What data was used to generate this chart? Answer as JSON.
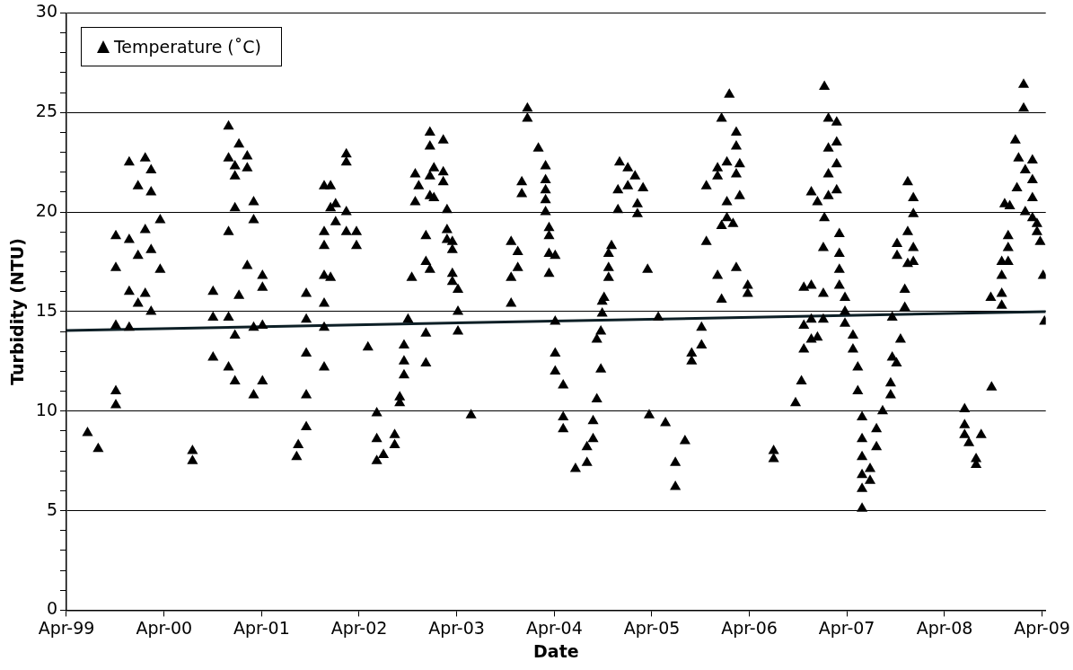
{
  "chart_data": {
    "type": "scatter",
    "xlabel": "Date",
    "ylabel": "Turbidity (NTU)",
    "xlim": [
      "1999-04-01",
      "2009-04-15"
    ],
    "xticks": [
      {
        "value": "1999-04-01",
        "label": "Apr-99"
      },
      {
        "value": "2000-04-01",
        "label": "Apr-00"
      },
      {
        "value": "2001-04-01",
        "label": "Apr-01"
      },
      {
        "value": "2002-04-01",
        "label": "Apr-02"
      },
      {
        "value": "2003-04-01",
        "label": "Apr-03"
      },
      {
        "value": "2004-04-01",
        "label": "Apr-04"
      },
      {
        "value": "2005-04-01",
        "label": "Apr-05"
      },
      {
        "value": "2006-04-01",
        "label": "Apr-06"
      },
      {
        "value": "2007-04-01",
        "label": "Apr-07"
      },
      {
        "value": "2008-04-01",
        "label": "Apr-08"
      },
      {
        "value": "2009-04-01",
        "label": "Apr-09"
      }
    ],
    "ylim": [
      0,
      30
    ],
    "yticks": [
      0,
      {
        "value": 1,
        "label": null
      },
      {
        "value": 2,
        "label": null
      },
      {
        "value": 3,
        "label": null
      },
      {
        "value": 4,
        "label": null
      },
      5,
      {
        "value": 6,
        "label": null
      },
      {
        "value": 7,
        "label": null
      },
      {
        "value": 8,
        "label": null
      },
      {
        "value": 9,
        "label": null
      },
      10,
      {
        "value": 11,
        "label": null
      },
      {
        "value": 12,
        "label": null
      },
      {
        "value": 13,
        "label": null
      },
      {
        "value": 14,
        "label": null
      },
      15,
      {
        "value": 16,
        "label": null
      },
      {
        "value": 17,
        "label": null
      },
      {
        "value": 18,
        "label": null
      },
      {
        "value": 19,
        "label": null
      },
      20,
      {
        "value": 21,
        "label": null
      },
      {
        "value": 22,
        "label": null
      },
      {
        "value": 23,
        "label": null
      },
      {
        "value": 24,
        "label": null
      },
      25,
      {
        "value": 26,
        "label": null
      },
      {
        "value": 27,
        "label": null
      },
      {
        "value": 28,
        "label": null
      },
      {
        "value": 29,
        "label": null
      },
      30
    ],
    "grid": "y",
    "legend": "top left",
    "series": [
      {
        "name": "Temperature (˚C)",
        "color": "#000000",
        "marker": "triangle",
        "x": [
          "1999-06-19",
          "1999-07-29",
          "1999-10-03",
          "1999-10-03",
          "1999-10-03",
          "1999-10-03",
          "1999-10-03",
          "1999-11-22",
          "1999-11-22",
          "1999-11-22",
          "1999-11-22",
          "1999-12-25",
          "1999-12-25",
          "1999-12-25",
          "2000-01-21",
          "2000-01-21",
          "2000-01-21",
          "2000-02-12",
          "2000-02-12",
          "2000-02-12",
          "2000-02-12",
          "2000-03-17",
          "2000-03-17",
          "2000-07-16",
          "2000-07-16",
          "2000-10-01",
          "2000-10-01",
          "2000-10-01",
          "2000-11-28",
          "2000-11-28",
          "2000-11-28",
          "2000-11-28",
          "2000-11-28",
          "2000-12-22",
          "2000-12-22",
          "2000-12-22",
          "2000-12-22",
          "2000-12-22",
          "2001-01-06",
          "2001-01-06",
          "2001-02-06",
          "2001-02-06",
          "2001-02-06",
          "2001-03-02",
          "2001-03-02",
          "2001-03-02",
          "2001-03-02",
          "2001-04-04",
          "2001-04-04",
          "2001-04-04",
          "2001-04-04",
          "2001-08-16",
          "2001-08-10",
          "2001-09-15",
          "2001-09-15",
          "2001-09-15",
          "2001-09-15",
          "2001-09-15",
          "2001-11-21",
          "2001-11-21",
          "2001-11-21",
          "2001-11-21",
          "2001-11-21",
          "2001-11-21",
          "2001-11-21",
          "2001-12-15",
          "2001-12-15",
          "2001-12-15",
          "2002-01-03",
          "2002-01-03",
          "2002-02-12",
          "2002-02-12",
          "2002-02-12",
          "2002-02-12",
          "2002-03-22",
          "2002-03-22",
          "2002-05-04",
          "2002-06-06",
          "2002-06-06",
          "2002-06-06",
          "2002-07-01",
          "2002-08-12",
          "2002-08-12",
          "2002-08-31",
          "2002-08-31",
          "2002-09-16",
          "2002-09-16",
          "2002-09-16",
          "2002-10-01",
          "2002-10-15",
          "2002-10-28",
          "2002-10-28",
          "2002-11-10",
          "2002-12-07",
          "2002-12-07",
          "2002-12-07",
          "2002-12-07",
          "2002-12-22",
          "2002-12-22",
          "2002-12-22",
          "2002-12-22",
          "2002-12-22",
          "2003-01-06",
          "2003-01-06",
          "2003-02-10",
          "2003-02-10",
          "2003-02-10",
          "2003-02-24",
          "2003-02-24",
          "2003-02-24",
          "2003-03-16",
          "2003-03-16",
          "2003-03-16",
          "2003-03-16",
          "2003-04-06",
          "2003-04-06",
          "2003-04-06",
          "2003-05-25",
          "2003-10-22",
          "2003-10-22",
          "2003-10-22",
          "2003-11-16",
          "2003-11-16",
          "2003-12-01",
          "2003-12-01",
          "2003-12-22",
          "2003-12-22",
          "2004-02-01",
          "2004-02-28",
          "2004-02-28",
          "2004-02-28",
          "2004-02-28",
          "2004-02-28",
          "2004-03-12",
          "2004-03-12",
          "2004-03-12",
          "2004-03-12",
          "2004-04-04",
          "2004-04-04",
          "2004-04-04",
          "2004-04-04",
          "2004-05-04",
          "2004-05-04",
          "2004-05-04",
          "2004-06-19",
          "2004-08-01",
          "2004-08-01",
          "2004-08-24",
          "2004-08-24",
          "2004-09-07",
          "2004-09-07",
          "2004-09-22",
          "2004-09-22",
          "2004-09-27",
          "2004-09-27",
          "2004-10-04",
          "2004-10-21",
          "2004-10-21",
          "2004-10-21",
          "2004-11-01",
          "2004-11-25",
          "2004-11-25",
          "2004-12-01",
          "2005-01-01",
          "2005-01-01",
          "2005-01-28",
          "2005-02-06",
          "2005-02-06",
          "2005-02-27",
          "2005-03-16",
          "2005-03-22",
          "2005-04-25",
          "2005-05-22",
          "2005-06-28",
          "2005-06-28",
          "2005-08-03",
          "2005-08-28",
          "2005-08-28",
          "2005-10-04",
          "2005-10-04",
          "2005-10-22",
          "2005-10-22",
          "2005-12-03",
          "2005-12-03",
          "2005-12-03",
          "2005-12-18",
          "2005-12-18",
          "2005-12-18",
          "2006-01-07",
          "2006-01-07",
          "2006-01-07",
          "2006-01-16",
          "2006-01-30",
          "2006-02-11",
          "2006-02-11",
          "2006-02-11",
          "2006-02-11",
          "2006-02-24",
          "2006-02-24",
          "2006-03-26",
          "2006-03-26",
          "2006-07-01",
          "2006-07-01",
          "2006-09-21",
          "2006-10-13",
          "2006-10-22",
          "2006-10-22",
          "2006-10-22",
          "2006-11-19",
          "2006-11-19",
          "2006-11-19",
          "2006-11-19",
          "2006-12-12",
          "2006-12-12",
          "2007-01-03",
          "2007-01-03",
          "2007-01-03",
          "2007-01-07",
          "2007-01-07",
          "2007-01-22",
          "2007-01-22",
          "2007-01-22",
          "2007-01-22",
          "2007-02-22",
          "2007-02-22",
          "2007-02-22",
          "2007-02-22",
          "2007-03-04",
          "2007-03-04",
          "2007-03-04",
          "2007-03-04",
          "2007-03-25",
          "2007-03-25",
          "2007-03-25",
          "2007-04-24",
          "2007-04-24",
          "2007-05-12",
          "2007-05-12",
          "2007-05-28",
          "2007-05-28",
          "2007-05-28",
          "2007-05-28",
          "2007-05-28",
          "2007-05-28",
          "2007-06-27",
          "2007-06-27",
          "2007-07-21",
          "2007-07-21",
          "2007-08-13",
          "2007-09-12",
          "2007-09-12",
          "2007-09-18",
          "2007-09-18",
          "2007-10-04",
          "2007-10-06",
          "2007-10-06",
          "2007-10-19",
          "2007-11-04",
          "2007-11-04",
          "2007-11-15",
          "2007-11-15",
          "2007-11-15",
          "2007-12-06",
          "2007-12-06",
          "2007-12-06",
          "2007-12-06",
          "2008-06-15",
          "2008-06-15",
          "2008-06-15",
          "2008-07-01",
          "2008-07-28",
          "2008-07-28",
          "2008-08-16",
          "2008-09-21",
          "2008-09-24",
          "2008-11-01",
          "2008-11-01",
          "2008-11-01",
          "2008-11-01",
          "2008-11-12",
          "2008-11-25",
          "2008-11-25",
          "2008-11-25",
          "2008-12-01",
          "2008-12-22",
          "2008-12-28",
          "2009-01-03",
          "2009-01-22",
          "2009-01-22",
          "2009-01-28",
          "2009-01-28",
          "2009-02-24",
          "2009-02-24",
          "2009-02-24",
          "2009-02-24",
          "2009-03-13",
          "2009-03-13",
          "2009-03-25",
          "2009-04-05",
          "2009-04-10"
        ],
        "values": [
          8.9,
          8.1,
          10.3,
          11.0,
          14.3,
          17.2,
          18.8,
          22.5,
          16.0,
          18.6,
          14.2,
          21.3,
          17.8,
          15.4,
          22.7,
          19.1,
          15.9,
          22.1,
          21.0,
          18.1,
          15.0,
          19.6,
          17.1,
          8.0,
          7.5,
          16.0,
          14.7,
          12.7,
          24.3,
          22.7,
          19.0,
          14.7,
          12.2,
          22.3,
          21.8,
          20.2,
          13.8,
          11.5,
          23.4,
          15.8,
          22.8,
          22.2,
          17.3,
          20.5,
          19.6,
          14.2,
          10.8,
          16.8,
          16.2,
          14.3,
          11.5,
          8.3,
          7.7,
          15.9,
          14.6,
          12.9,
          10.8,
          9.2,
          19.0,
          21.3,
          18.3,
          16.8,
          15.4,
          14.2,
          12.2,
          21.3,
          20.2,
          16.7,
          20.4,
          19.5,
          22.9,
          22.5,
          20.0,
          19.0,
          19.0,
          18.3,
          13.2,
          9.9,
          8.6,
          7.5,
          7.8,
          8.8,
          8.3,
          10.7,
          10.4,
          13.3,
          12.5,
          11.8,
          14.6,
          16.7,
          20.5,
          21.9,
          21.3,
          18.8,
          17.5,
          13.9,
          12.4,
          24.0,
          23.3,
          21.8,
          20.8,
          17.1,
          22.2,
          20.7,
          23.6,
          22.0,
          21.5,
          20.1,
          19.1,
          18.6,
          18.5,
          18.1,
          16.9,
          16.5,
          16.1,
          15.0,
          14.0,
          9.8,
          18.5,
          16.7,
          15.4,
          18.0,
          17.2,
          21.5,
          20.9,
          25.2,
          24.7,
          23.2,
          22.3,
          21.6,
          21.1,
          20.6,
          20.0,
          19.2,
          18.8,
          17.9,
          16.9,
          17.8,
          14.5,
          12.9,
          12.0,
          11.3,
          9.7,
          9.1,
          7.1,
          7.4,
          8.2,
          8.6,
          9.5,
          10.6,
          13.6,
          12.1,
          14.0,
          14.9,
          15.5,
          15.7,
          16.7,
          17.2,
          17.9,
          18.3,
          20.1,
          21.1,
          22.5,
          22.2,
          21.3,
          21.8,
          20.4,
          19.9,
          21.2,
          17.1,
          9.8,
          14.7,
          9.4,
          7.4,
          6.2,
          8.5,
          12.9,
          12.5,
          14.2,
          13.3,
          21.3,
          18.5,
          22.2,
          21.8,
          16.8,
          24.7,
          19.3,
          15.6,
          22.5,
          20.5,
          19.7,
          25.9,
          19.4,
          24.0,
          23.3,
          21.9,
          17.2,
          22.4,
          20.8,
          16.3,
          15.9,
          8.0,
          7.6,
          10.4,
          11.5,
          16.2,
          14.3,
          13.1,
          21.0,
          16.3,
          14.6,
          13.6,
          20.5,
          13.7,
          18.2,
          15.9,
          14.6,
          26.3,
          19.7,
          24.7,
          23.2,
          21.9,
          20.8,
          24.5,
          23.5,
          22.4,
          21.1,
          18.9,
          17.9,
          17.1,
          16.3,
          15.7,
          15.0,
          14.4,
          13.8,
          13.1,
          12.2,
          11.0,
          9.7,
          8.6,
          7.7,
          6.8,
          6.1,
          5.1,
          7.1,
          6.5,
          8.2,
          9.1,
          10.0,
          11.4,
          10.8,
          12.7,
          14.7,
          12.4,
          18.4,
          17.8,
          13.6,
          16.1,
          15.2,
          21.5,
          19.0,
          17.4,
          20.7,
          19.9,
          18.2,
          17.5,
          10.1,
          9.3,
          8.8,
          8.4,
          7.6,
          7.3,
          8.8,
          15.7,
          11.2,
          15.3,
          15.9,
          16.8,
          17.5,
          20.4,
          18.8,
          18.2,
          17.5,
          20.3,
          23.6,
          21.2,
          22.7,
          26.4,
          25.2,
          22.1,
          20.0,
          22.6,
          21.6,
          20.7,
          19.7,
          19.4,
          19.0,
          18.5,
          16.8,
          14.5
        ]
      },
      {
        "type": "line",
        "color": "#0d1f26",
        "x": [
          "1999-04-01",
          "2009-04-15"
        ],
        "values": [
          14.05,
          15.0
        ]
      }
    ]
  }
}
